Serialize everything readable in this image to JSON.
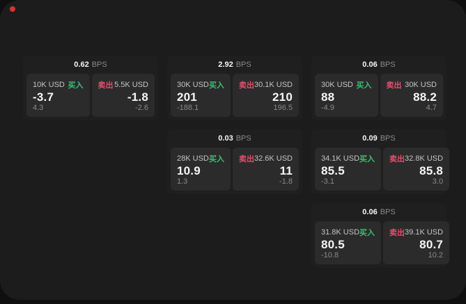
{
  "window": {
    "recording_dot": "red-dot"
  },
  "colors": {
    "page_bg": "#0f0f0f",
    "panel_bg": "#1c1c1c",
    "card_bg": "#1f1f1f",
    "tile_bg": "#2b2b2b",
    "buy_green": "#3cbf72",
    "sell_red": "#e0506e",
    "value_text": "#f5f5f5",
    "muted_text": "#8a8a8a",
    "amount_text": "#c4c4c4",
    "dot_red": "#d5342c"
  },
  "labels": {
    "bps_unit": "BPS",
    "buy": "买入",
    "sell": "卖出"
  },
  "cards": [
    {
      "row": 1,
      "col": 1,
      "bps": "0.62",
      "buy": {
        "amount": "10K USD",
        "value": "-3.7",
        "sub": "4.3"
      },
      "sell": {
        "amount": "5.5K USD",
        "value": "-1.8",
        "sub": "-2.6"
      }
    },
    {
      "row": 1,
      "col": 2,
      "bps": "2.92",
      "buy": {
        "amount": "30K USD",
        "value": "201",
        "sub": "-188.1"
      },
      "sell": {
        "amount": "30.1K USD",
        "value": "210",
        "sub": "196.5"
      }
    },
    {
      "row": 1,
      "col": 3,
      "bps": "0.06",
      "buy": {
        "amount": "30K USD",
        "value": "88",
        "sub": "-4.9"
      },
      "sell": {
        "amount": "30K USD",
        "value": "88.2",
        "sub": "4.7"
      }
    },
    {
      "row": 2,
      "col": 2,
      "bps": "0.03",
      "buy": {
        "amount": "28K USD",
        "value": "10.9",
        "sub": "1.3"
      },
      "sell": {
        "amount": "32.6K USD",
        "value": "11",
        "sub": "-1.8"
      }
    },
    {
      "row": 2,
      "col": 3,
      "bps": "0.09",
      "buy": {
        "amount": "34.1K USD",
        "value": "85.5",
        "sub": "-3.1"
      },
      "sell": {
        "amount": "32.8K USD",
        "value": "85.8",
        "sub": "3.0"
      }
    },
    {
      "row": 3,
      "col": 3,
      "bps": "0.06",
      "buy": {
        "amount": "31.8K USD",
        "value": "80.5",
        "sub": "-10.8"
      },
      "sell": {
        "amount": "39.1K USD",
        "value": "80.7",
        "sub": "10.2"
      }
    }
  ]
}
